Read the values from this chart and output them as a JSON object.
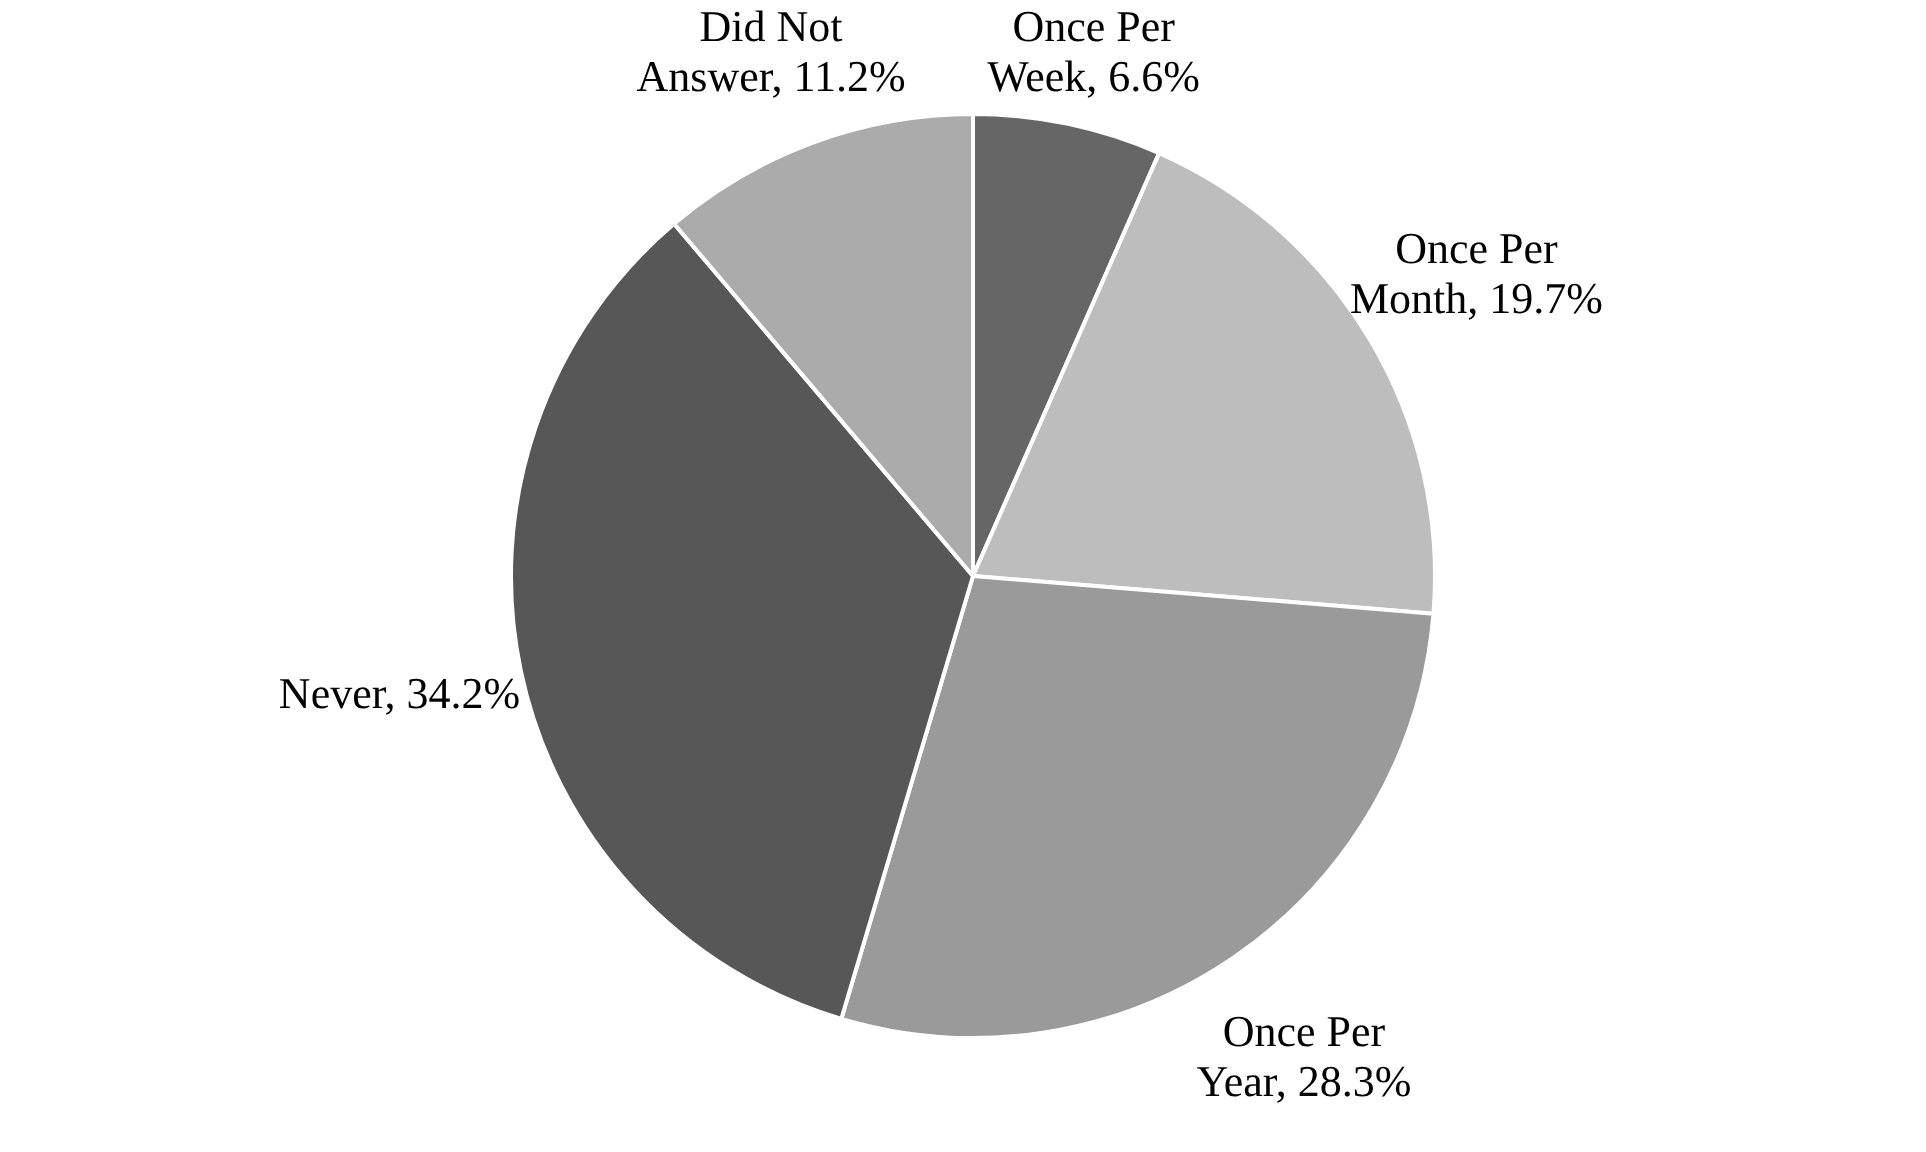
{
  "chart_data": {
    "type": "pie",
    "categories": [
      "Once Per Week",
      "Once Per Month",
      "Once Per Year",
      "Never",
      "Did Not Answer"
    ],
    "values": [
      6.6,
      19.7,
      28.3,
      34.2,
      11.2
    ],
    "value_labels": [
      "6.6%",
      "19.7%",
      "28.3%",
      "34.2%",
      "11.2%"
    ],
    "colors": [
      "#666666",
      "#bdbdbd",
      "#9a9a9a",
      "#575757",
      "#ababab"
    ]
  }
}
